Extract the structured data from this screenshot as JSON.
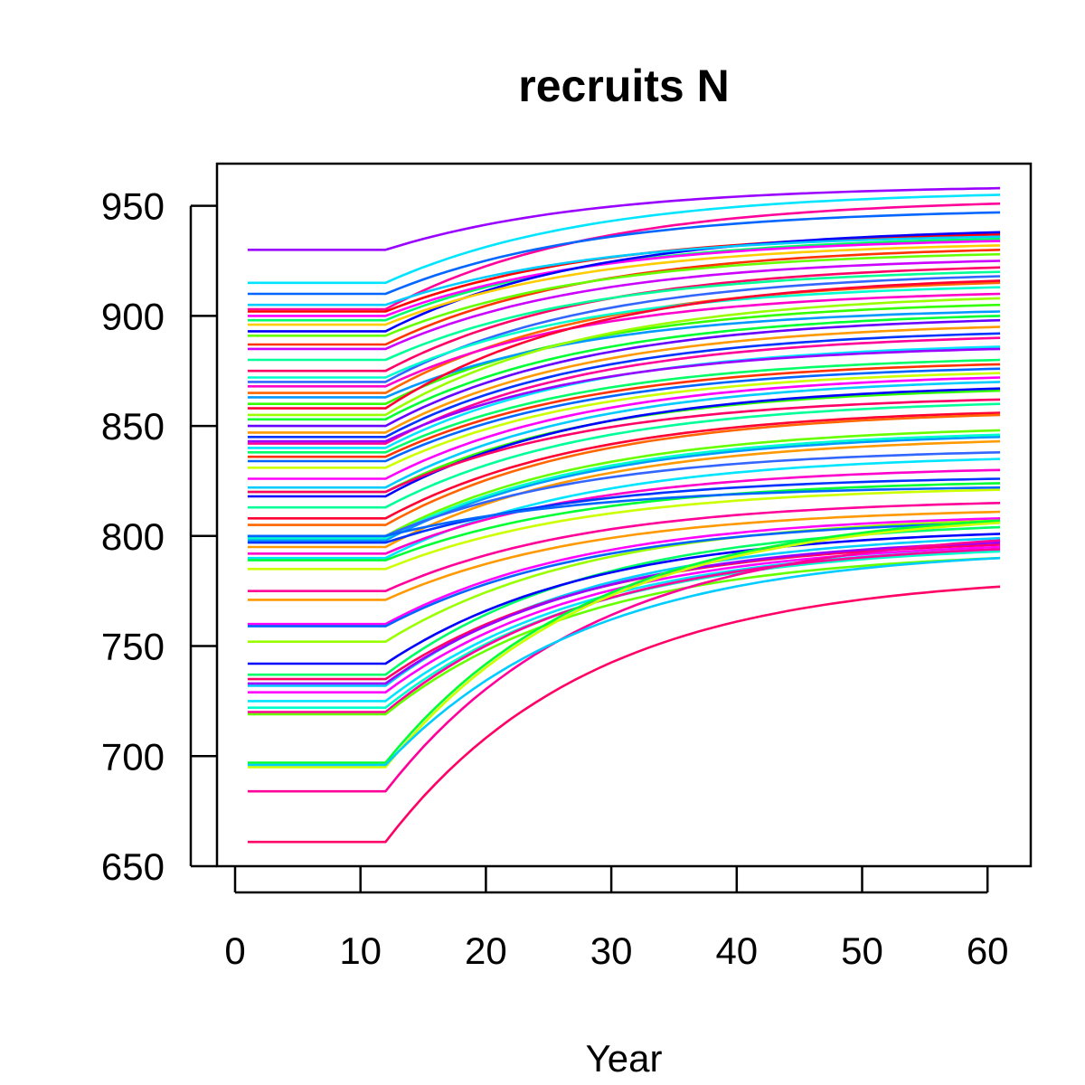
{
  "chart_data": {
    "type": "line",
    "title": "recruits N",
    "xlabel": "Year",
    "ylabel": "",
    "xlim": [
      1,
      61
    ],
    "ylim": [
      650,
      960
    ],
    "x_ticks": [
      0,
      10,
      20,
      30,
      40,
      50,
      60
    ],
    "y_ticks": [
      650,
      700,
      750,
      800,
      850,
      900,
      950
    ],
    "x_tick_labels": [
      "0",
      "10",
      "20",
      "30",
      "40",
      "50",
      "60"
    ],
    "y_tick_labels": [
      "650",
      "700",
      "750",
      "800",
      "850",
      "900",
      "950"
    ],
    "grid": false,
    "legend": "none",
    "change_year": 12,
    "series_model": "each series is constant at its start value for years 1-12, then rises toward its end value at year 61",
    "series": [
      {
        "color": "#9900ff",
        "start": 930,
        "end": 958
      },
      {
        "color": "#00e5ff",
        "start": 915,
        "end": 955
      },
      {
        "color": "#ff0099",
        "start": 903,
        "end": 951
      },
      {
        "color": "#0066ff",
        "start": 910,
        "end": 947
      },
      {
        "color": "#ff0000",
        "start": 902,
        "end": 937
      },
      {
        "color": "#00ff66",
        "start": 898,
        "end": 935
      },
      {
        "color": "#ff00ff",
        "start": 900,
        "end": 934
      },
      {
        "color": "#0000ff",
        "start": 893,
        "end": 938
      },
      {
        "color": "#ffcc00",
        "start": 896,
        "end": 932
      },
      {
        "color": "#00ccff",
        "start": 905,
        "end": 936
      },
      {
        "color": "#ff3300",
        "start": 887,
        "end": 930
      },
      {
        "color": "#66ff00",
        "start": 891,
        "end": 928
      },
      {
        "color": "#cc00ff",
        "start": 885,
        "end": 925
      },
      {
        "color": "#ff0066",
        "start": 875,
        "end": 922
      },
      {
        "color": "#00ff99",
        "start": 880,
        "end": 920
      },
      {
        "color": "#3366ff",
        "start": 870,
        "end": 918
      },
      {
        "color": "#ff6600",
        "start": 865,
        "end": 915
      },
      {
        "color": "#00ffcc",
        "start": 872,
        "end": 913
      },
      {
        "color": "#ff00cc",
        "start": 868,
        "end": 910
      },
      {
        "color": "#33ff00",
        "start": 860,
        "end": 905
      },
      {
        "color": "#0099ff",
        "start": 863,
        "end": 902
      },
      {
        "color": "#ff0033",
        "start": 858,
        "end": 916
      },
      {
        "color": "#99ff00",
        "start": 855,
        "end": 908
      },
      {
        "color": "#6600ff",
        "start": 850,
        "end": 898
      },
      {
        "color": "#00ff33",
        "start": 853,
        "end": 900
      },
      {
        "color": "#ff9900",
        "start": 847,
        "end": 895
      },
      {
        "color": "#0033ff",
        "start": 845,
        "end": 892
      },
      {
        "color": "#ff0099",
        "start": 842,
        "end": 890
      },
      {
        "color": "#00e5ff",
        "start": 840,
        "end": 886
      },
      {
        "color": "#9900ff",
        "start": 843,
        "end": 885
      },
      {
        "color": "#00ff66",
        "start": 838,
        "end": 880
      },
      {
        "color": "#ff3300",
        "start": 836,
        "end": 878
      },
      {
        "color": "#0066ff",
        "start": 834,
        "end": 876
      },
      {
        "color": "#ccff00",
        "start": 831,
        "end": 874
      },
      {
        "color": "#ff00ff",
        "start": 826,
        "end": 872
      },
      {
        "color": "#00ccff",
        "start": 822,
        "end": 870
      },
      {
        "color": "#33ff00",
        "start": 820,
        "end": 866
      },
      {
        "color": "#0000ff",
        "start": 818,
        "end": 867
      },
      {
        "color": "#ff0066",
        "start": 820,
        "end": 862
      },
      {
        "color": "#00ff99",
        "start": 813,
        "end": 860
      },
      {
        "color": "#ff0033",
        "start": 808,
        "end": 856
      },
      {
        "color": "#ff6600",
        "start": 805,
        "end": 855
      },
      {
        "color": "#66ff00",
        "start": 800,
        "end": 848
      },
      {
        "color": "#0099ff",
        "start": 798,
        "end": 845
      },
      {
        "color": "#00ffcc",
        "start": 799,
        "end": 846
      },
      {
        "color": "#ff9900",
        "start": 795,
        "end": 843
      },
      {
        "color": "#3366ff",
        "start": 800,
        "end": 838
      },
      {
        "color": "#00e5ff",
        "start": 790,
        "end": 835
      },
      {
        "color": "#ff00cc",
        "start": 792,
        "end": 830
      },
      {
        "color": "#0033ff",
        "start": 797,
        "end": 826
      },
      {
        "color": "#00ff33",
        "start": 789,
        "end": 824
      },
      {
        "color": "#0066ff",
        "start": 800,
        "end": 822
      },
      {
        "color": "#ccff00",
        "start": 785,
        "end": 821
      },
      {
        "color": "#ff0099",
        "start": 775,
        "end": 815
      },
      {
        "color": "#ff9900",
        "start": 771,
        "end": 811
      },
      {
        "color": "#ff00ff",
        "start": 760,
        "end": 808
      },
      {
        "color": "#99ff00",
        "start": 752,
        "end": 807
      },
      {
        "color": "#0066ff",
        "start": 759,
        "end": 806
      },
      {
        "color": "#00ff66",
        "start": 737,
        "end": 804
      },
      {
        "color": "#0000ff",
        "start": 742,
        "end": 801
      },
      {
        "color": "#00ccff",
        "start": 732,
        "end": 799
      },
      {
        "color": "#ff0066",
        "start": 735,
        "end": 796
      },
      {
        "color": "#00e5ff",
        "start": 725,
        "end": 794
      },
      {
        "color": "#ff00ff",
        "start": 729,
        "end": 795
      },
      {
        "color": "#9900ff",
        "start": 733,
        "end": 797
      },
      {
        "color": "#00ffcc",
        "start": 722,
        "end": 793
      },
      {
        "color": "#ff0099",
        "start": 720,
        "end": 794
      },
      {
        "color": "#66ff00",
        "start": 719,
        "end": 790
      },
      {
        "color": "#00ff33",
        "start": 697,
        "end": 807
      },
      {
        "color": "#ccff00",
        "start": 695,
        "end": 806
      },
      {
        "color": "#ff0099",
        "start": 684,
        "end": 798
      },
      {
        "color": "#00ccff",
        "start": 696,
        "end": 790
      },
      {
        "color": "#ff0066",
        "start": 661,
        "end": 777
      }
    ]
  }
}
